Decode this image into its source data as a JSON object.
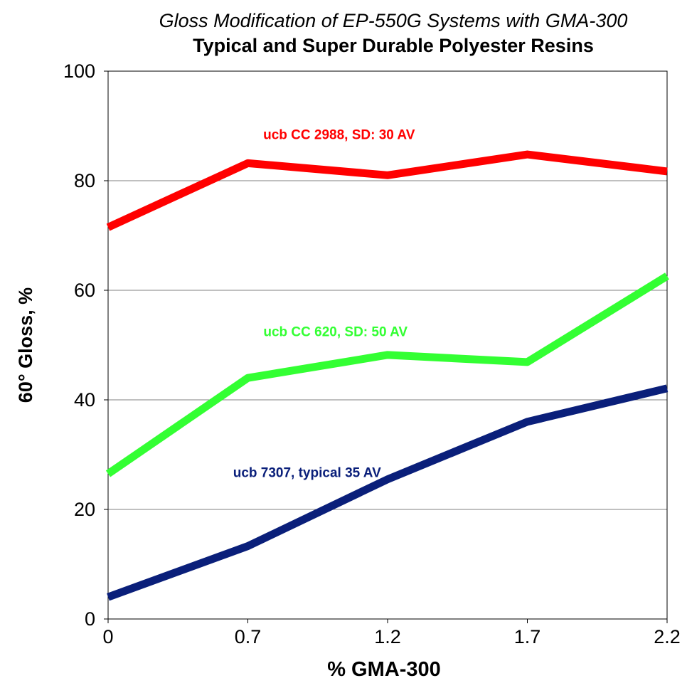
{
  "chart_data": {
    "type": "line",
    "subtitle": "Gloss Modification of EP-550G Systems with GMA-300",
    "title": "Typical and Super Durable Polyester Resins",
    "xlabel": "% GMA-300",
    "ylabel": "60° Gloss, %",
    "categories": [
      "0",
      "0.7",
      "1.2",
      "1.7",
      "2.2"
    ],
    "ylim": [
      0,
      100
    ],
    "yticks": [
      "0",
      "20",
      "40",
      "60",
      "80",
      "100"
    ],
    "grid": true,
    "series": [
      {
        "name": "ucb CC 2988, SD: 30 AV",
        "color": "#ff0000",
        "values": [
          71.5,
          83.2,
          81.0,
          84.8,
          81.7
        ]
      },
      {
        "name": "ucb CC 620, SD: 50 AV",
        "color": "#33ff33",
        "values": [
          26.5,
          44.0,
          48.2,
          46.9,
          62.6
        ]
      },
      {
        "name": "ucb 7307, typical 35 AV",
        "color": "#0a1f7a",
        "values": [
          4.0,
          13.3,
          25.5,
          36.0,
          42.1
        ]
      }
    ]
  }
}
